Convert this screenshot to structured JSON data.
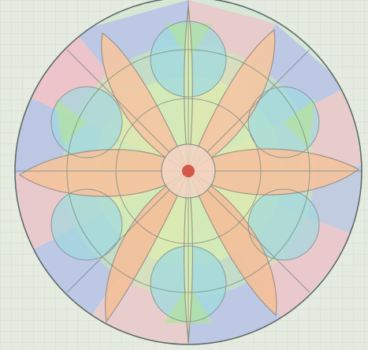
{
  "image": {
    "description_label": "",
    "corner_scribble": "",
    "colors": {
      "paper": "#eef2e6",
      "grid": "#c9d3c6",
      "pencil": "#6f7a7a",
      "petal_orange": "#f3c49f",
      "petal_peach": "#f7d7bf",
      "blue_violet": "#b9c3e6",
      "pink": "#efc0c9",
      "cyan": "#9fd9df",
      "green": "#c9ecb3",
      "yellow_green": "#e0f3a8"
    }
  }
}
